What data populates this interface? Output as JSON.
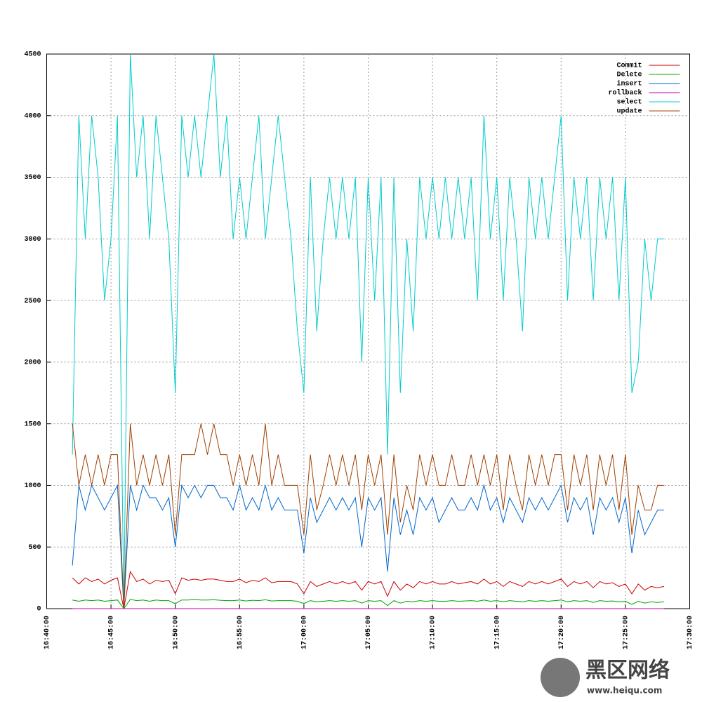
{
  "chart_data": {
    "type": "line",
    "x": [
      "16:42:00",
      "16:42:30",
      "16:43:00",
      "16:43:30",
      "16:44:00",
      "16:44:30",
      "16:45:00",
      "16:45:30",
      "16:46:00",
      "16:46:30",
      "16:47:00",
      "16:47:30",
      "16:48:00",
      "16:48:30",
      "16:49:00",
      "16:49:30",
      "16:50:00",
      "16:50:30",
      "16:51:00",
      "16:51:30",
      "16:52:00",
      "16:52:30",
      "16:53:00",
      "16:53:30",
      "16:54:00",
      "16:54:30",
      "16:55:00",
      "16:55:30",
      "16:56:00",
      "16:56:30",
      "16:57:00",
      "16:57:30",
      "16:58:00",
      "16:58:30",
      "16:59:00",
      "16:59:30",
      "17:00:00",
      "17:00:30",
      "17:01:00",
      "17:01:30",
      "17:02:00",
      "17:02:30",
      "17:03:00",
      "17:03:30",
      "17:04:00",
      "17:04:30",
      "17:05:00",
      "17:05:30",
      "17:06:00",
      "17:06:30",
      "17:07:00",
      "17:07:30",
      "17:08:00",
      "17:08:30",
      "17:09:00",
      "17:09:30",
      "17:10:00",
      "17:10:30",
      "17:11:00",
      "17:11:30",
      "17:12:00",
      "17:12:30",
      "17:13:00",
      "17:13:30",
      "17:14:00",
      "17:14:30",
      "17:15:00",
      "17:15:30",
      "17:16:00",
      "17:16:30",
      "17:17:00",
      "17:17:30",
      "17:18:00",
      "17:18:30",
      "17:19:00",
      "17:19:30",
      "17:20:00",
      "17:20:30",
      "17:21:00",
      "17:21:30",
      "17:22:00",
      "17:22:30",
      "17:23:00",
      "17:23:30",
      "17:24:00",
      "17:24:30",
      "17:25:00",
      "17:25:30",
      "17:26:00",
      "17:26:30",
      "17:27:00",
      "17:27:30",
      "17:28:00"
    ],
    "series": [
      {
        "name": "Commit",
        "color": "#cc0000",
        "values": [
          250,
          200,
          250,
          220,
          240,
          200,
          230,
          250,
          0,
          300,
          220,
          240,
          200,
          230,
          220,
          230,
          120,
          250,
          230,
          240,
          230,
          240,
          240,
          230,
          220,
          220,
          240,
          210,
          230,
          220,
          250,
          210,
          220,
          220,
          220,
          200,
          120,
          220,
          180,
          200,
          220,
          200,
          220,
          200,
          220,
          150,
          220,
          200,
          220,
          100,
          220,
          150,
          200,
          170,
          220,
          200,
          220,
          200,
          200,
          220,
          200,
          210,
          220,
          200,
          240,
          200,
          220,
          180,
          220,
          200,
          180,
          220,
          200,
          220,
          200,
          220,
          240,
          180,
          220,
          200,
          220,
          170,
          220,
          200,
          210,
          180,
          200,
          120,
          200,
          150,
          180,
          170,
          180
        ]
      },
      {
        "name": "Delete",
        "color": "#00a000",
        "values": [
          70,
          60,
          70,
          65,
          70,
          60,
          65,
          70,
          0,
          75,
          65,
          70,
          60,
          70,
          65,
          65,
          40,
          70,
          70,
          75,
          70,
          70,
          72,
          68,
          65,
          65,
          70,
          62,
          68,
          65,
          72,
          62,
          65,
          65,
          65,
          60,
          40,
          65,
          55,
          60,
          65,
          60,
          65,
          60,
          65,
          45,
          65,
          60,
          65,
          25,
          65,
          45,
          60,
          55,
          65,
          60,
          65,
          60,
          60,
          65,
          60,
          62,
          65,
          60,
          70,
          60,
          65,
          55,
          65,
          60,
          55,
          65,
          60,
          65,
          60,
          65,
          70,
          55,
          65,
          60,
          65,
          50,
          65,
          60,
          62,
          55,
          60,
          35,
          60,
          45,
          55,
          50,
          55
        ]
      },
      {
        "name": "insert",
        "color": "#0066cc",
        "values": [
          350,
          1000,
          800,
          1000,
          900,
          800,
          900,
          1000,
          0,
          1000,
          800,
          1000,
          900,
          900,
          800,
          900,
          500,
          1000,
          900,
          1000,
          900,
          1000,
          1000,
          900,
          900,
          800,
          1000,
          800,
          900,
          800,
          1000,
          800,
          900,
          800,
          800,
          800,
          450,
          900,
          700,
          800,
          900,
          800,
          900,
          800,
          900,
          500,
          900,
          800,
          900,
          300,
          900,
          600,
          800,
          600,
          900,
          800,
          900,
          700,
          800,
          900,
          800,
          800,
          900,
          800,
          1000,
          800,
          900,
          700,
          900,
          800,
          700,
          900,
          800,
          900,
          800,
          900,
          1000,
          700,
          900,
          800,
          900,
          600,
          900,
          800,
          900,
          700,
          900,
          450,
          800,
          600,
          700,
          800,
          800
        ]
      },
      {
        "name": "rollback",
        "color": "#c000a0",
        "values": [
          0,
          0,
          0,
          0,
          0,
          0,
          0,
          0,
          0,
          0,
          0,
          0,
          0,
          0,
          0,
          0,
          0,
          0,
          0,
          0,
          0,
          0,
          0,
          0,
          0,
          0,
          0,
          0,
          0,
          0,
          0,
          0,
          0,
          0,
          0,
          0,
          0,
          0,
          0,
          0,
          0,
          0,
          0,
          0,
          0,
          0,
          0,
          0,
          0,
          0,
          0,
          0,
          0,
          0,
          0,
          0,
          0,
          0,
          0,
          0,
          0,
          0,
          0,
          0,
          0,
          0,
          0,
          0,
          0,
          0,
          0,
          0,
          0,
          0,
          0,
          0,
          0,
          0,
          0,
          0,
          0,
          0,
          0,
          0,
          0,
          0,
          0,
          0,
          0,
          0,
          0,
          0,
          0
        ]
      },
      {
        "name": "select",
        "color": "#00cccc",
        "values": [
          1250,
          4000,
          3000,
          4000,
          3500,
          2500,
          3000,
          4000,
          0,
          4500,
          3500,
          4000,
          3000,
          4000,
          3500,
          3000,
          1750,
          4000,
          3500,
          4000,
          3500,
          4000,
          4500,
          3500,
          4000,
          3000,
          3500,
          3000,
          3500,
          4000,
          3000,
          3500,
          4000,
          3500,
          3000,
          2250,
          1750,
          3500,
          2250,
          3000,
          3500,
          3000,
          3500,
          3000,
          3500,
          2000,
          3500,
          2500,
          3500,
          1250,
          3500,
          1750,
          3000,
          2250,
          3500,
          3000,
          3500,
          3000,
          3500,
          3000,
          3500,
          3000,
          3500,
          2500,
          4000,
          3000,
          3500,
          2500,
          3500,
          3000,
          2250,
          3500,
          3000,
          3500,
          3000,
          3500,
          4000,
          2500,
          3500,
          3000,
          3500,
          2500,
          3500,
          3000,
          3500,
          2500,
          3500,
          1750,
          2000,
          3000,
          2500,
          3000,
          3000
        ]
      },
      {
        "name": "update",
        "color": "#a04000",
        "values": [
          1500,
          1000,
          1250,
          1000,
          1250,
          1000,
          1250,
          1250,
          0,
          1500,
          1000,
          1250,
          1000,
          1250,
          1000,
          1250,
          600,
          1250,
          1250,
          1250,
          1500,
          1250,
          1500,
          1250,
          1250,
          1000,
          1250,
          1000,
          1250,
          1000,
          1500,
          1000,
          1250,
          1000,
          1000,
          1000,
          600,
          1250,
          800,
          1000,
          1250,
          1000,
          1250,
          1000,
          1250,
          800,
          1250,
          1000,
          1250,
          600,
          1250,
          700,
          1000,
          800,
          1250,
          1000,
          1250,
          1000,
          1000,
          1250,
          1000,
          1000,
          1250,
          1000,
          1250,
          1000,
          1250,
          800,
          1250,
          1000,
          800,
          1250,
          1000,
          1250,
          1000,
          1250,
          1250,
          800,
          1250,
          1000,
          1250,
          800,
          1250,
          1000,
          1250,
          800,
          1250,
          600,
          1000,
          800,
          800,
          1000,
          1000
        ]
      }
    ],
    "xlim": [
      "16:40:00",
      "17:30:00"
    ],
    "xticks": [
      "16:40:00",
      "16:45:00",
      "16:50:00",
      "16:55:00",
      "17:00:00",
      "17:05:00",
      "17:10:00",
      "17:15:00",
      "17:20:00",
      "17:25:00",
      "17:30:00"
    ],
    "ylim": [
      0,
      4500
    ],
    "yticks": [
      0,
      500,
      1000,
      1500,
      2000,
      2500,
      3000,
      3500,
      4000,
      4500
    ],
    "grid": true,
    "legend": "top-right",
    "watermark": [
      "黑区网络",
      "www.heiqu.com"
    ]
  }
}
